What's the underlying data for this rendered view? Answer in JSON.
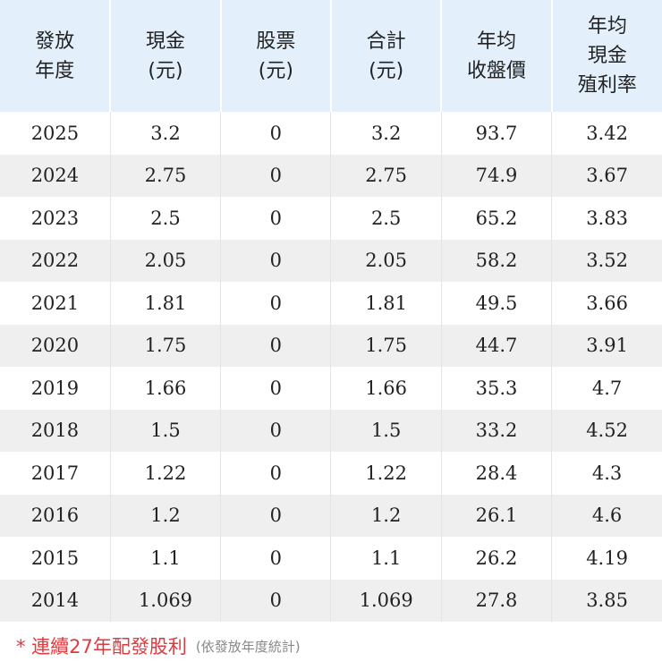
{
  "table": {
    "header": [
      [
        "發放",
        "年度"
      ],
      [
        "現金",
        "(元)"
      ],
      [
        "股票",
        "(元)"
      ],
      [
        "合計",
        "(元)"
      ],
      [
        "年均",
        "收盤價"
      ],
      [
        "年均",
        "現金",
        "殖利率"
      ]
    ],
    "rows": [
      [
        2025,
        3.2,
        0,
        3.2,
        93.7,
        3.42
      ],
      [
        2024,
        2.75,
        0,
        2.75,
        74.9,
        3.67
      ],
      [
        2023,
        2.5,
        0,
        2.5,
        65.2,
        3.83
      ],
      [
        2022,
        2.05,
        0,
        2.05,
        58.2,
        3.52
      ],
      [
        2021,
        1.81,
        0,
        1.81,
        49.5,
        3.66
      ],
      [
        2020,
        1.75,
        0,
        1.75,
        44.7,
        3.91
      ],
      [
        2019,
        1.66,
        0,
        1.66,
        35.3,
        4.7
      ],
      [
        2018,
        1.5,
        0,
        1.5,
        33.2,
        4.52
      ],
      [
        2017,
        1.22,
        0,
        1.22,
        28.4,
        4.3
      ],
      [
        2016,
        1.2,
        0,
        1.2,
        26.1,
        4.6
      ],
      [
        2015,
        1.1,
        0,
        1.1,
        26.2,
        4.19
      ],
      [
        2014,
        1.069,
        0,
        1.069,
        27.8,
        3.85
      ]
    ]
  },
  "footer": {
    "note": "* 連續27年配發股利",
    "sub": "(依發放年度統計)"
  }
}
